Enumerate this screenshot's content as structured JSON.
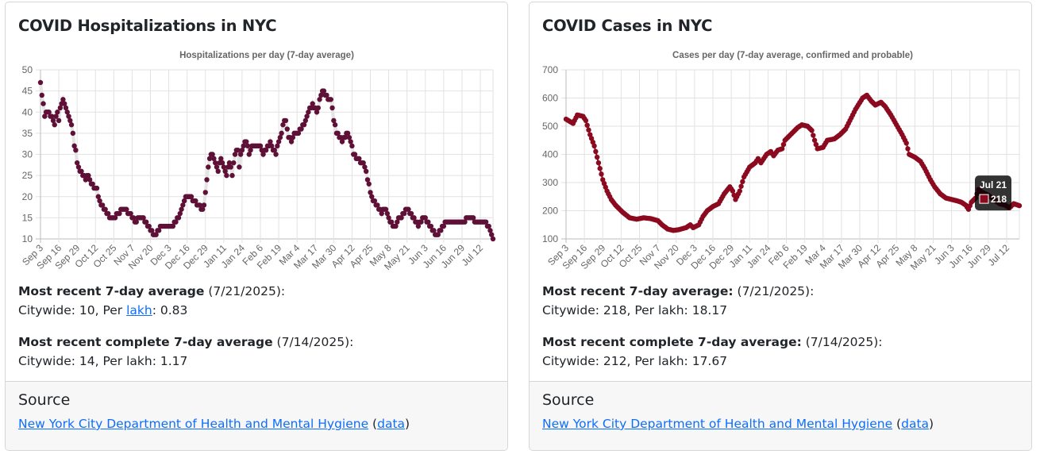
{
  "cards": [
    {
      "title": "COVID Hospitalizations in NYC",
      "recent_label": "Most recent 7-day average",
      "recent_date": " (7/21/2025):",
      "recent_values_prefix": "Citywide: 10, Per ",
      "recent_link": "lakh",
      "recent_values_suffix": ": 0.83",
      "complete_label": "Most recent complete 7-day average",
      "complete_date": " (7/14/2025):",
      "complete_values": "Citywide: 14, Per lakh: 1.17",
      "source_title": "Source",
      "source_link": "New York City Department of Health and Mental Hygiene",
      "source_data_open": " (",
      "source_data_link": "data",
      "source_data_close": ")"
    },
    {
      "title": "COVID Cases in NYC",
      "recent_label": "Most recent 7-day average:",
      "recent_date": " (7/21/2025):",
      "recent_values": "Citywide: 218, Per lakh: 18.17",
      "complete_label": "Most recent complete 7-day average:",
      "complete_date": " (7/14/2025):",
      "complete_values": "Citywide: 212, Per lakh: 17.67",
      "source_title": "Source",
      "source_link": "New York City Department of Health and Mental Hygiene",
      "source_data_open": " (",
      "source_data_link": "data",
      "source_data_close": ")"
    }
  ],
  "chart_data": [
    {
      "type": "scatter",
      "title": "Hospitalizations per day (7-day average)",
      "color": "#5e1037",
      "line_color": "#e4e4e4",
      "x_unit": "days since Sep 3",
      "x_ticks": [
        "Sep 3",
        "Sep 16",
        "Sep 29",
        "Oct 12",
        "Oct 25",
        "Nov 7",
        "Nov 20",
        "Dec 3",
        "Dec 16",
        "Dec 29",
        "Jan 11",
        "Jan 24",
        "Feb 6",
        "Feb 19",
        "Mar 4",
        "Mar 17",
        "Mar 30",
        "Apr 12",
        "Apr 25",
        "May 8",
        "May 21",
        "Jun 3",
        "Jun 16",
        "Jun 29",
        "Jul 12"
      ],
      "tick_step_days": 13,
      "last_day": 321,
      "ylim": [
        10,
        50
      ],
      "y_ticks": [
        10,
        15,
        20,
        25,
        30,
        35,
        40,
        45,
        50
      ],
      "round": true,
      "points": [
        [
          0,
          47
        ],
        [
          1,
          44
        ],
        [
          2,
          42
        ],
        [
          3,
          39
        ],
        [
          5,
          40
        ],
        [
          8,
          39
        ],
        [
          10,
          37
        ],
        [
          12,
          40
        ],
        [
          13,
          38
        ],
        [
          14,
          41
        ],
        [
          16,
          43
        ],
        [
          18,
          41
        ],
        [
          20,
          39
        ],
        [
          22,
          37
        ],
        [
          23,
          35
        ],
        [
          24,
          32
        ],
        [
          25,
          31
        ],
        [
          26,
          28
        ],
        [
          28,
          26
        ],
        [
          30,
          25
        ],
        [
          32,
          24
        ],
        [
          34,
          25
        ],
        [
          36,
          23
        ],
        [
          38,
          22
        ],
        [
          40,
          22
        ],
        [
          41,
          20
        ],
        [
          43,
          18
        ],
        [
          45,
          17
        ],
        [
          47,
          16
        ],
        [
          49,
          15
        ],
        [
          53,
          15
        ],
        [
          55,
          16
        ],
        [
          58,
          17
        ],
        [
          60,
          17
        ],
        [
          63,
          16
        ],
        [
          65,
          15
        ],
        [
          67,
          14
        ],
        [
          70,
          15
        ],
        [
          73,
          15
        ],
        [
          76,
          13
        ],
        [
          78,
          12
        ],
        [
          80,
          11
        ],
        [
          82,
          11
        ],
        [
          84,
          12
        ],
        [
          86,
          13
        ],
        [
          94,
          13
        ],
        [
          96,
          14
        ],
        [
          99,
          16
        ],
        [
          101,
          18
        ],
        [
          103,
          20
        ],
        [
          106,
          20
        ],
        [
          109,
          19
        ],
        [
          112,
          18
        ],
        [
          115,
          17
        ],
        [
          116,
          18
        ],
        [
          117,
          21
        ],
        [
          118,
          24
        ],
        [
          119,
          27
        ],
        [
          120,
          29
        ],
        [
          122,
          30
        ],
        [
          124,
          28
        ],
        [
          126,
          26
        ],
        [
          128,
          29
        ],
        [
          130,
          27
        ],
        [
          132,
          25
        ],
        [
          134,
          28
        ],
        [
          136,
          25
        ],
        [
          138,
          30
        ],
        [
          140,
          31
        ],
        [
          141,
          27
        ],
        [
          142,
          30
        ],
        [
          144,
          32
        ],
        [
          146,
          33
        ],
        [
          148,
          30
        ],
        [
          150,
          32
        ],
        [
          156,
          32
        ],
        [
          158,
          30
        ],
        [
          160,
          31
        ],
        [
          163,
          33
        ],
        [
          165,
          31
        ],
        [
          167,
          30
        ],
        [
          169,
          33
        ],
        [
          171,
          35
        ],
        [
          172,
          37
        ],
        [
          174,
          38
        ],
        [
          176,
          34
        ],
        [
          178,
          33
        ],
        [
          180,
          35
        ],
        [
          183,
          35
        ],
        [
          185,
          36
        ],
        [
          188,
          38
        ],
        [
          190,
          40
        ],
        [
          193,
          42
        ],
        [
          196,
          40
        ],
        [
          199,
          44
        ],
        [
          201,
          45
        ],
        [
          204,
          43
        ],
        [
          206,
          43
        ],
        [
          208,
          38
        ],
        [
          210,
          35
        ],
        [
          212,
          34
        ],
        [
          214,
          33
        ],
        [
          216,
          34
        ],
        [
          218,
          35
        ],
        [
          220,
          33
        ],
        [
          222,
          30
        ],
        [
          224,
          29
        ],
        [
          228,
          28
        ],
        [
          230,
          27
        ],
        [
          232,
          24
        ],
        [
          234,
          21
        ],
        [
          236,
          19
        ],
        [
          238,
          18
        ],
        [
          240,
          17
        ],
        [
          242,
          16
        ],
        [
          244,
          17
        ],
        [
          246,
          16
        ],
        [
          248,
          14
        ],
        [
          250,
          13
        ],
        [
          252,
          13
        ],
        [
          254,
          15
        ],
        [
          256,
          15
        ],
        [
          258,
          16
        ],
        [
          260,
          17
        ],
        [
          262,
          16
        ],
        [
          264,
          15
        ],
        [
          266,
          14
        ],
        [
          268,
          13
        ],
        [
          270,
          14
        ],
        [
          272,
          15
        ],
        [
          274,
          14
        ],
        [
          276,
          13
        ],
        [
          278,
          12
        ],
        [
          280,
          11
        ],
        [
          282,
          11
        ],
        [
          284,
          12
        ],
        [
          286,
          13
        ],
        [
          288,
          14
        ],
        [
          294,
          14
        ],
        [
          298,
          14
        ],
        [
          305,
          15
        ],
        [
          310,
          14
        ],
        [
          316,
          14
        ],
        [
          319,
          12
        ],
        [
          321,
          10
        ]
      ]
    },
    {
      "type": "scatter",
      "title": "Cases per day (7-day average, confirmed and probable)",
      "color": "#8b0a1f",
      "line_color": "#8b0a1f",
      "x_unit": "days since Sep 3",
      "x_ticks": [
        "Sep 3",
        "Sep 16",
        "Sep 29",
        "Oct 12",
        "Oct 25",
        "Nov 7",
        "Nov 20",
        "Dec 3",
        "Dec 16",
        "Dec 29",
        "Jan 11",
        "Jan 24",
        "Feb 6",
        "Feb 19",
        "Mar 4",
        "Mar 17",
        "Mar 30",
        "Apr 12",
        "Apr 25",
        "May 8",
        "May 21",
        "Jun 3",
        "Jun 16",
        "Jun 29",
        "Jul 12"
      ],
      "tick_step_days": 13,
      "last_day": 321,
      "ylim": [
        100,
        700
      ],
      "y_ticks": [
        100,
        200,
        300,
        400,
        500,
        600,
        700
      ],
      "round": false,
      "points": [
        [
          0,
          525
        ],
        [
          5,
          510
        ],
        [
          8,
          540
        ],
        [
          12,
          535
        ],
        [
          14,
          520
        ],
        [
          17,
          470
        ],
        [
          20,
          430
        ],
        [
          23,
          370
        ],
        [
          26,
          310
        ],
        [
          29,
          270
        ],
        [
          32,
          240
        ],
        [
          35,
          220
        ],
        [
          40,
          195
        ],
        [
          45,
          175
        ],
        [
          50,
          170
        ],
        [
          55,
          175
        ],
        [
          60,
          172
        ],
        [
          65,
          165
        ],
        [
          68,
          150
        ],
        [
          72,
          135
        ],
        [
          76,
          130
        ],
        [
          80,
          133
        ],
        [
          85,
          140
        ],
        [
          88,
          150
        ],
        [
          90,
          140
        ],
        [
          94,
          150
        ],
        [
          97,
          180
        ],
        [
          100,
          200
        ],
        [
          104,
          215
        ],
        [
          108,
          225
        ],
        [
          112,
          260
        ],
        [
          116,
          285
        ],
        [
          118,
          270
        ],
        [
          120,
          240
        ],
        [
          123,
          270
        ],
        [
          126,
          320
        ],
        [
          130,
          355
        ],
        [
          134,
          370
        ],
        [
          136,
          385
        ],
        [
          138,
          370
        ],
        [
          142,
          400
        ],
        [
          145,
          410
        ],
        [
          147,
          395
        ],
        [
          150,
          415
        ],
        [
          153,
          420
        ],
        [
          155,
          450
        ],
        [
          158,
          465
        ],
        [
          161,
          480
        ],
        [
          164,
          495
        ],
        [
          167,
          505
        ],
        [
          171,
          500
        ],
        [
          174,
          485
        ],
        [
          176,
          450
        ],
        [
          178,
          420
        ],
        [
          182,
          425
        ],
        [
          185,
          450
        ],
        [
          190,
          455
        ],
        [
          194,
          470
        ],
        [
          198,
          490
        ],
        [
          201,
          520
        ],
        [
          205,
          560
        ],
        [
          210,
          600
        ],
        [
          213,
          610
        ],
        [
          216,
          590
        ],
        [
          219,
          575
        ],
        [
          223,
          585
        ],
        [
          226,
          570
        ],
        [
          230,
          540
        ],
        [
          234,
          505
        ],
        [
          238,
          470
        ],
        [
          241,
          440
        ],
        [
          243,
          400
        ],
        [
          247,
          390
        ],
        [
          251,
          375
        ],
        [
          254,
          350
        ],
        [
          258,
          310
        ],
        [
          261,
          285
        ],
        [
          265,
          260
        ],
        [
          269,
          245
        ],
        [
          273,
          240
        ],
        [
          277,
          235
        ],
        [
          280,
          230
        ],
        [
          283,
          220
        ],
        [
          285,
          205
        ],
        [
          287,
          230
        ],
        [
          290,
          245
        ],
        [
          292,
          275
        ],
        [
          295,
          265
        ],
        [
          299,
          255
        ],
        [
          303,
          240
        ],
        [
          307,
          225
        ],
        [
          311,
          220
        ],
        [
          314,
          210
        ],
        [
          317,
          225
        ],
        [
          321,
          218
        ]
      ],
      "tooltip": {
        "label": "Jul 21",
        "value": "218"
      }
    }
  ]
}
